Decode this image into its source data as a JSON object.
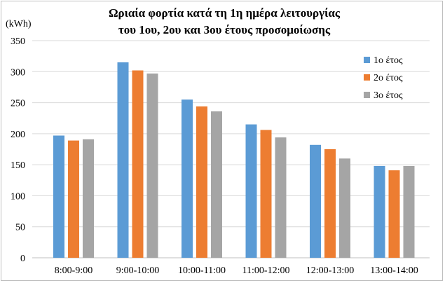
{
  "chart_data": {
    "type": "bar",
    "title_lines": [
      "Ωριαία φορτία κατά τη 1η ημέρα λειτουργίας",
      "του 1ου, 2ου και 3ου έτους προσομοίωσης"
    ],
    "ylabel": "(kWh)",
    "xlabel": "",
    "ylim": [
      0,
      350
    ],
    "yticks": [
      0,
      50,
      100,
      150,
      200,
      250,
      300,
      350
    ],
    "grid": true,
    "legend_position": "right",
    "categories": [
      "8:00-9:00",
      "9:00-10:00",
      "10:00-11:00",
      "11:00-12:00",
      "12:00-13:00",
      "13:00-14:00"
    ],
    "series": [
      {
        "name": "1ο έτος",
        "color": "#5b9bd5",
        "values": [
          197,
          315,
          255,
          215,
          182,
          148
        ]
      },
      {
        "name": "2ο έτος",
        "color": "#ed7d31",
        "values": [
          189,
          302,
          244,
          206,
          175,
          141
        ]
      },
      {
        "name": "3ο έτος",
        "color": "#a5a5a5",
        "values": [
          191,
          297,
          236,
          194,
          160,
          148
        ]
      }
    ]
  }
}
